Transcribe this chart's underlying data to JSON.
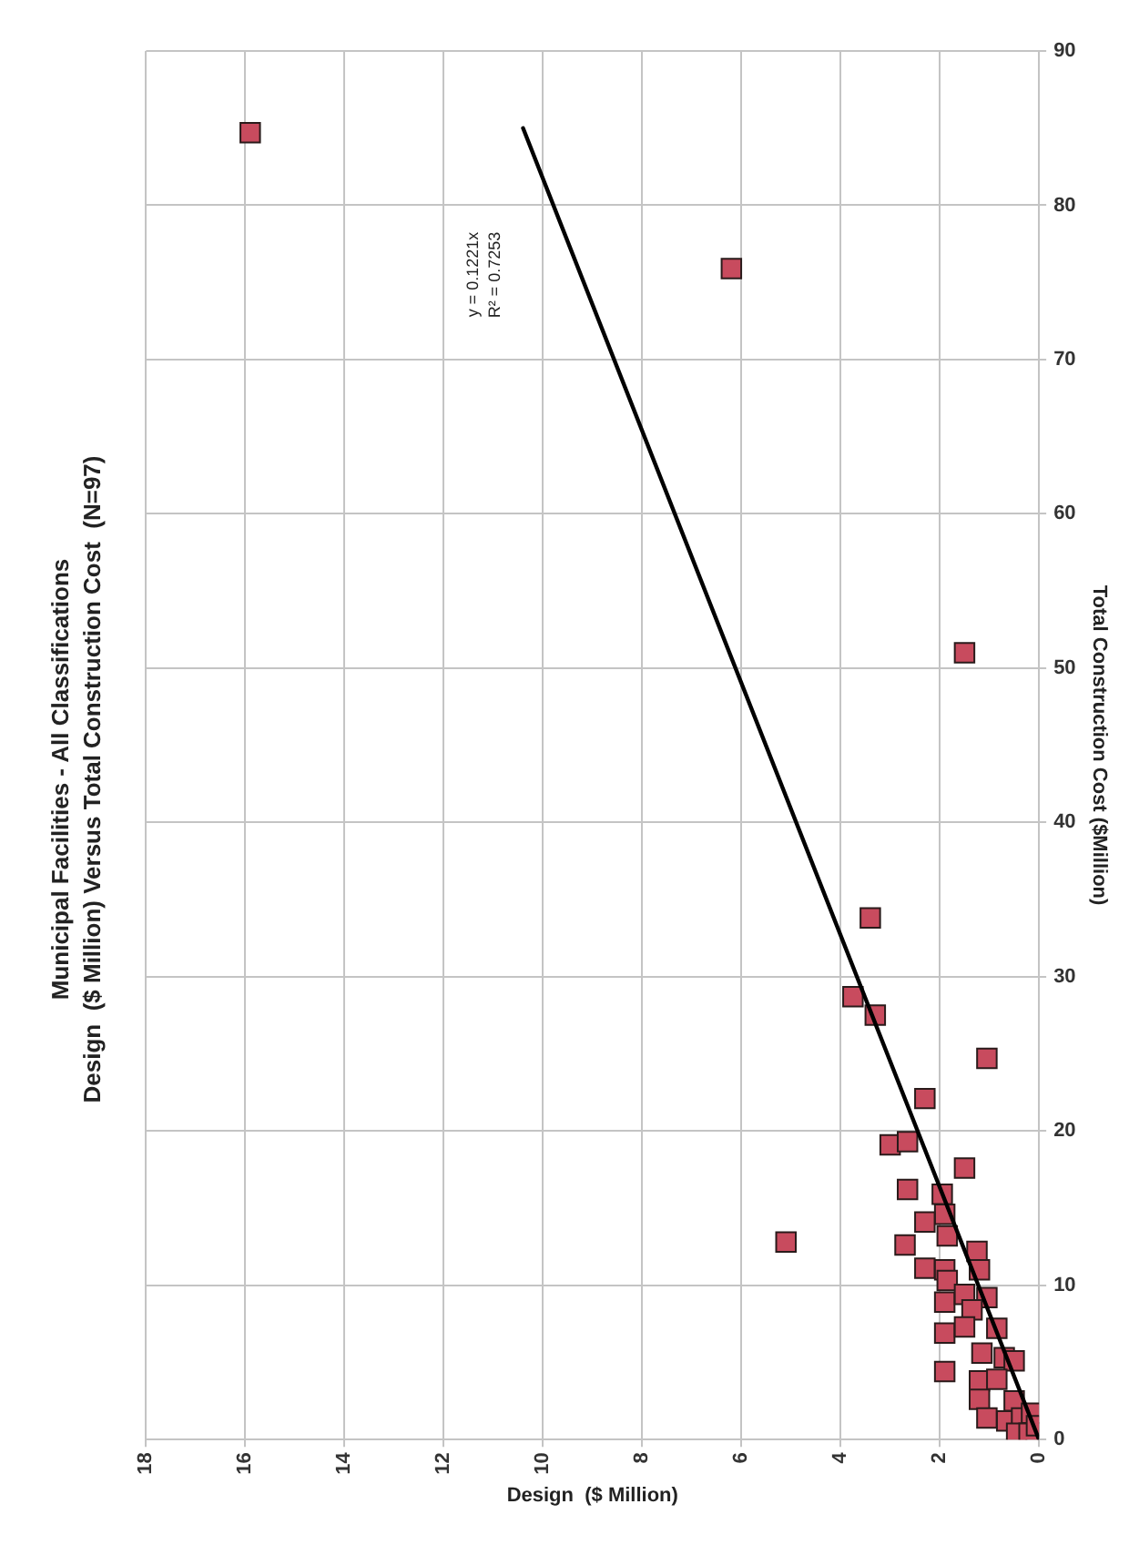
{
  "chart_data": {
    "type": "scatter",
    "title": "Municipal Facilities - All Classifications",
    "subtitle": "Design  ($ Million) Versus Total Construction Cost  (N=97)",
    "xlabel": "Design  ($ Million)",
    "ylabel": "Total Construction Cost ($Million)",
    "xlim": [
      18,
      0
    ],
    "xticks": [
      0,
      2,
      4,
      6,
      8,
      10,
      12,
      14,
      16,
      18
    ],
    "ylim": [
      0,
      90
    ],
    "yticks": [
      0,
      10,
      20,
      30,
      40,
      50,
      60,
      70,
      80,
      90
    ],
    "grid": true,
    "marker": "square",
    "annotations": [
      "y = 0.1221x",
      "R² = 0.7253"
    ],
    "series": [
      {
        "color": "#c84b5e",
        "x": [
          15.9,
          6.2,
          1.5,
          3.4,
          3.75,
          3.3,
          1.05,
          2.3,
          3.0,
          2.65,
          1.5,
          2.65,
          1.95,
          1.9,
          2.3,
          1.85,
          5.1,
          2.7,
          1.25,
          2.3,
          1.2,
          1.9,
          1.85,
          1.9,
          1.5,
          1.05,
          1.35,
          1.9,
          1.5,
          0.85,
          1.9,
          1.15,
          0.7,
          0.5,
          1.2,
          0.85,
          1.2,
          1.05,
          0.5,
          0.65,
          0.35,
          0.15,
          0.45,
          0.2,
          0.05
        ],
        "values": [
          84.7,
          75.9,
          51.0,
          33.8,
          28.7,
          27.5,
          24.7,
          22.1,
          19.1,
          19.3,
          17.6,
          16.2,
          15.9,
          14.6,
          14.1,
          13.2,
          12.8,
          12.6,
          12.2,
          11.1,
          11.0,
          11.0,
          10.3,
          8.9,
          9.4,
          9.2,
          8.4,
          6.9,
          7.3,
          7.2,
          4.4,
          5.6,
          5.3,
          5.1,
          3.8,
          3.9,
          2.6,
          1.4,
          2.5,
          1.2,
          1.4,
          1.7,
          0.4,
          0.4,
          0.9
        ]
      },
      {
        "type": "line",
        "color": "#000000",
        "marker": "none",
        "x": [
          0,
          10.4
        ],
        "values": [
          0,
          85
        ]
      }
    ]
  }
}
